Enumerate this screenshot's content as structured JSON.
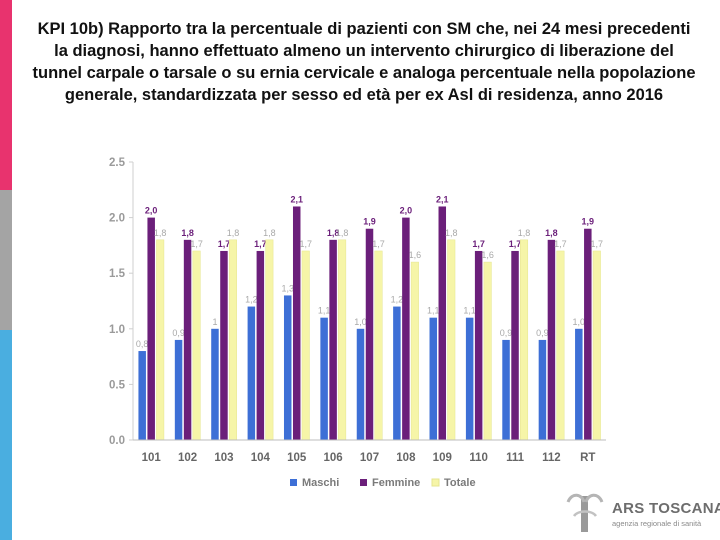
{
  "title": "KPI 10b) Rapporto tra la percentuale di pazienti con SM che, nei 24 mesi precedenti la diagnosi, hanno effettuato almeno un intervento chirurgico di liberazione del tunnel carpale o tarsale o su ernia cervicale e analoga percentuale nella popolazione generale, standardizzata per sesso ed età per ex Asl di residenza, anno 2016",
  "chart_data": {
    "type": "bar",
    "categories": [
      "101",
      "102",
      "103",
      "104",
      "105",
      "106",
      "107",
      "108",
      "109",
      "110",
      "111",
      "112",
      "RT"
    ],
    "ylim": [
      0,
      2.5
    ],
    "yticks": [
      "0.0",
      "0.5",
      "1.0",
      "1.5",
      "2.0",
      "2.5"
    ],
    "legend_position": "bottom",
    "series": [
      {
        "name": "Maschi",
        "color": "#3d6fd6",
        "values": [
          0.8,
          0.9,
          1.0,
          1.2,
          1.3,
          1.1,
          1.0,
          1.2,
          1.1,
          1.1,
          0.9,
          0.9,
          1.0
        ],
        "labels": [
          "0,8",
          "0,9",
          "1",
          "1,2",
          "1,3",
          "1,1",
          "1,0",
          "1,2",
          "1,1",
          "1,1",
          "0,9",
          "0,9",
          "1,0"
        ]
      },
      {
        "name": "Femmine",
        "color": "#6b1f7a",
        "values": [
          2.0,
          1.8,
          1.7,
          1.7,
          2.1,
          1.8,
          1.9,
          2.0,
          2.1,
          1.7,
          1.7,
          1.8,
          1.9
        ],
        "labels": [
          "2,0",
          "1,8",
          "1,7",
          "1,7",
          "2,1",
          "1,8",
          "1,9",
          "2,0",
          "2,1",
          "1,7",
          "1,7",
          "1,8",
          "1,9"
        ]
      },
      {
        "name": "Totale",
        "color": "#f6f5a8",
        "values": [
          1.8,
          1.7,
          1.8,
          1.8,
          1.7,
          1.8,
          1.7,
          1.6,
          1.8,
          1.6,
          1.8,
          1.7,
          1.7
        ],
        "labels": [
          "1,8",
          "1,7",
          "1,8",
          "1,8",
          "1,7",
          "1,8",
          "1,7",
          "1,6",
          "1,8",
          "1,6",
          "1,8",
          "1,7",
          "1,7"
        ]
      }
    ]
  },
  "logo": {
    "main": "ARS TOSCANA",
    "sub": "agenzia regionale di sanità"
  }
}
